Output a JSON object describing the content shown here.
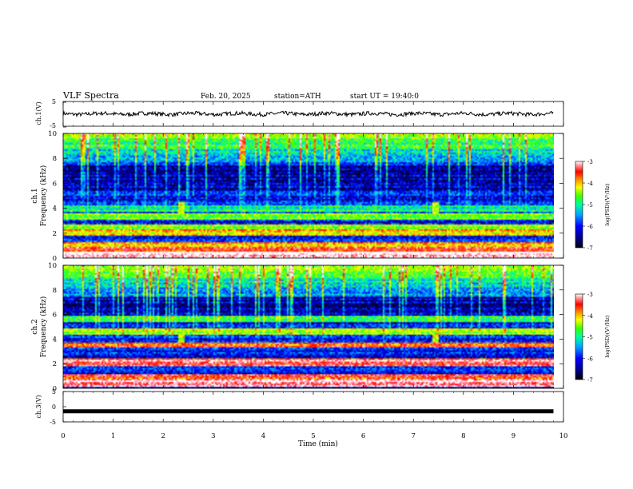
{
  "header": {
    "title": "VLF Spectra",
    "date": "Feb. 20, 2025",
    "station": "station=ATH",
    "start": "start UT =  19:40:0"
  },
  "chart_data": [
    {
      "type": "line",
      "panel": "ch1-waveform",
      "ylabel": "ch.1(V)",
      "ylim": [
        -5,
        5
      ],
      "y_ticks": [
        "5",
        "-5"
      ],
      "xlim": [
        0,
        10
      ],
      "series": [
        {
          "values_note_free": true,
          "mean": 0,
          "amplitude": 0.8,
          "color": "#000000"
        }
      ]
    },
    {
      "type": "heatmap",
      "panel": "ch1-spectrogram",
      "ylabel": "ch.1\nFrequency (kHz)",
      "ylabel_line1": "ch.1",
      "ylabel_line2": "Frequency (kHz)",
      "ylim": [
        0,
        10
      ],
      "y_ticks": [
        "0",
        "2",
        "4",
        "6",
        "8",
        "10"
      ],
      "xlim": [
        0,
        9.8
      ],
      "colorbar": {
        "label": "log(PSD)(V²/Hz)",
        "range": [
          -7,
          -3
        ],
        "ticks": [
          "-3",
          "-4",
          "-5",
          "-6",
          "-7"
        ]
      },
      "bands_khz": [
        {
          "f": 0.2,
          "level": -3.3
        },
        {
          "f": 0.6,
          "level": -3.8
        },
        {
          "f": 1.0,
          "level": -4.3
        },
        {
          "f": 2.0,
          "level": -4.6
        },
        {
          "f": 2.4,
          "level": -5.0
        },
        {
          "f": 3.3,
          "level": -5.2
        },
        {
          "f": 4.0,
          "level": -5.6
        }
      ],
      "events_min": [
        2.35,
        7.45
      ]
    },
    {
      "type": "heatmap",
      "panel": "ch2-spectrogram",
      "ylabel_line1": "ch.2",
      "ylabel_line2": "Frequency (kHz)",
      "ylim": [
        0,
        10
      ],
      "y_ticks": [
        "0",
        "2",
        "4",
        "6",
        "8",
        "10"
      ],
      "xlim": [
        0,
        9.8
      ],
      "colorbar": {
        "label": "log(PSD)(V²/Hz)",
        "range": [
          -7,
          -3
        ],
        "ticks": [
          "-3",
          "-4",
          "-5",
          "-6",
          "-7"
        ]
      },
      "bands_khz": [
        {
          "f": 0.3,
          "level": -3.3
        },
        {
          "f": 0.8,
          "level": -3.8
        },
        {
          "f": 2.0,
          "level": -3.6
        },
        {
          "f": 2.2,
          "level": -4.1
        },
        {
          "f": 3.5,
          "level": -4.0
        },
        {
          "f": 4.6,
          "level": -5.0
        },
        {
          "f": 5.6,
          "level": -5.4
        }
      ],
      "events_min": [
        2.35,
        7.45
      ]
    },
    {
      "type": "line",
      "panel": "ch3-waveform",
      "ylabel": "ch.3(V)",
      "ylim": [
        -5,
        5
      ],
      "y_ticks": [
        "5",
        "0",
        "-5"
      ],
      "xlim": [
        0,
        9.8
      ],
      "series": [
        {
          "value": -1.5,
          "color": "#000000"
        }
      ]
    }
  ],
  "x_axis": {
    "label": "Time (min)",
    "ticks": [
      "0",
      "1",
      "2",
      "3",
      "4",
      "5",
      "6",
      "7",
      "8",
      "9",
      "10"
    ],
    "range": [
      0,
      10
    ]
  },
  "colors": {
    "background": "#ffffff",
    "axis": "#000000",
    "colormap": [
      "#000030",
      "#000080",
      "#0000ff",
      "#0060ff",
      "#00c0ff",
      "#00ffa0",
      "#40ff00",
      "#c0ff00",
      "#ffff00",
      "#ff8000",
      "#ff0000",
      "#ff80a0",
      "#ffffff"
    ]
  }
}
